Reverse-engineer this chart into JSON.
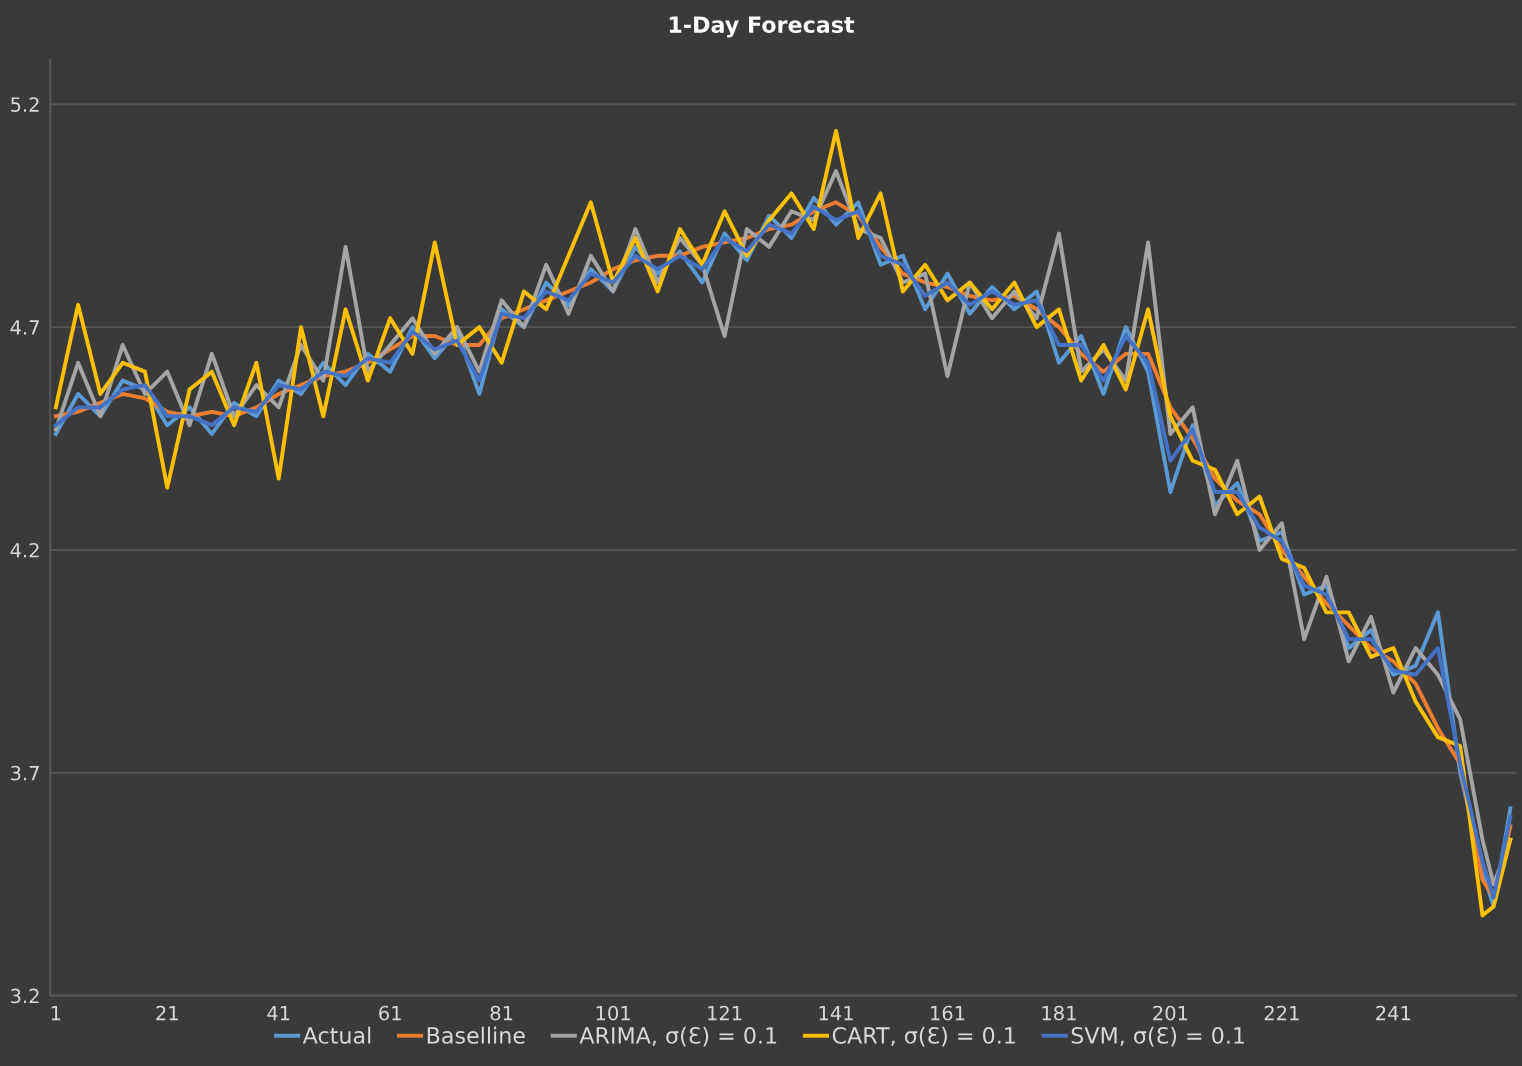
{
  "chart_data": {
    "type": "line",
    "title": "1-Day Forecast",
    "x": [
      1,
      5,
      9,
      13,
      17,
      21,
      25,
      29,
      33,
      37,
      41,
      45,
      49,
      53,
      57,
      61,
      65,
      69,
      73,
      77,
      81,
      85,
      89,
      93,
      97,
      101,
      105,
      109,
      113,
      117,
      121,
      125,
      129,
      133,
      137,
      141,
      145,
      149,
      153,
      157,
      161,
      165,
      169,
      173,
      177,
      181,
      185,
      189,
      193,
      197,
      201,
      205,
      209,
      213,
      217,
      221,
      225,
      229,
      233,
      237,
      241,
      245,
      249,
      253,
      257,
      259,
      262
    ],
    "series": [
      {
        "name": "Actual",
        "color": "#5b9bd5",
        "values": [
          4.46,
          4.55,
          4.5,
          4.58,
          4.56,
          4.48,
          4.52,
          4.46,
          4.53,
          4.5,
          4.58,
          4.55,
          4.62,
          4.57,
          4.64,
          4.6,
          4.7,
          4.63,
          4.69,
          4.55,
          4.74,
          4.7,
          4.8,
          4.75,
          4.83,
          4.78,
          4.88,
          4.82,
          4.87,
          4.8,
          4.91,
          4.85,
          4.95,
          4.9,
          4.99,
          4.93,
          4.98,
          4.84,
          4.86,
          4.74,
          4.82,
          4.73,
          4.79,
          4.74,
          4.78,
          4.62,
          4.68,
          4.55,
          4.7,
          4.6,
          4.33,
          4.48,
          4.3,
          4.35,
          4.22,
          4.24,
          4.1,
          4.12,
          3.98,
          4.02,
          3.92,
          3.94,
          4.06,
          3.7,
          3.48,
          3.4,
          3.62
        ]
      },
      {
        "name": "Baselline",
        "color": "#ed7d31",
        "values": [
          4.5,
          4.51,
          4.53,
          4.55,
          4.54,
          4.51,
          4.5,
          4.51,
          4.5,
          4.52,
          4.55,
          4.57,
          4.59,
          4.6,
          4.62,
          4.65,
          4.68,
          4.68,
          4.66,
          4.66,
          4.72,
          4.74,
          4.76,
          4.78,
          4.8,
          4.83,
          4.85,
          4.86,
          4.86,
          4.88,
          4.89,
          4.9,
          4.92,
          4.93,
          4.96,
          4.98,
          4.95,
          4.88,
          4.82,
          4.8,
          4.79,
          4.77,
          4.76,
          4.77,
          4.74,
          4.7,
          4.64,
          4.6,
          4.64,
          4.64,
          4.52,
          4.45,
          4.36,
          4.31,
          4.28,
          4.2,
          4.14,
          4.08,
          4.03,
          3.98,
          3.95,
          3.9,
          3.8,
          3.72,
          3.46,
          3.42,
          3.58
        ]
      },
      {
        "name": "ARIMA, σ(Ɛ) = 0.1",
        "color": "#a5a5a5",
        "values": [
          4.47,
          4.62,
          4.5,
          4.66,
          4.55,
          4.6,
          4.48,
          4.64,
          4.5,
          4.57,
          4.52,
          4.66,
          4.58,
          4.88,
          4.6,
          4.66,
          4.72,
          4.64,
          4.7,
          4.6,
          4.76,
          4.7,
          4.84,
          4.73,
          4.86,
          4.78,
          4.92,
          4.8,
          4.9,
          4.84,
          4.68,
          4.92,
          4.88,
          4.96,
          4.94,
          5.05,
          4.92,
          4.9,
          4.8,
          4.82,
          4.59,
          4.8,
          4.72,
          4.78,
          4.72,
          4.91,
          4.6,
          4.65,
          4.58,
          4.89,
          4.46,
          4.52,
          4.28,
          4.4,
          4.2,
          4.26,
          4.0,
          4.14,
          3.95,
          4.05,
          3.88,
          3.98,
          3.92,
          3.82,
          3.55,
          3.45,
          3.55
        ]
      },
      {
        "name": "CART, σ(Ɛ) = 0.1",
        "color": "#ffc000",
        "values": [
          4.52,
          4.75,
          4.55,
          4.62,
          4.6,
          4.34,
          4.56,
          4.6,
          4.48,
          4.62,
          4.36,
          4.7,
          4.5,
          4.74,
          4.58,
          4.72,
          4.64,
          4.89,
          4.66,
          4.7,
          4.62,
          4.78,
          4.74,
          4.86,
          4.98,
          4.8,
          4.9,
          4.78,
          4.92,
          4.84,
          4.96,
          4.86,
          4.94,
          5.0,
          4.92,
          5.14,
          4.9,
          5.0,
          4.78,
          4.84,
          4.76,
          4.8,
          4.74,
          4.8,
          4.7,
          4.74,
          4.58,
          4.66,
          4.56,
          4.74,
          4.5,
          4.4,
          4.38,
          4.28,
          4.32,
          4.18,
          4.16,
          4.06,
          4.06,
          3.96,
          3.98,
          3.86,
          3.78,
          3.76,
          3.38,
          3.4,
          3.55
        ]
      },
      {
        "name": "SVM, σ(Ɛ) = 0.1",
        "color": "#4472c4",
        "values": [
          4.48,
          4.52,
          4.52,
          4.56,
          4.57,
          4.5,
          4.5,
          4.48,
          4.52,
          4.51,
          4.57,
          4.56,
          4.6,
          4.59,
          4.63,
          4.62,
          4.69,
          4.65,
          4.67,
          4.58,
          4.73,
          4.72,
          4.78,
          4.76,
          4.82,
          4.8,
          4.86,
          4.83,
          4.86,
          4.83,
          4.9,
          4.87,
          4.93,
          4.91,
          4.97,
          4.94,
          4.96,
          4.86,
          4.84,
          4.77,
          4.8,
          4.75,
          4.78,
          4.75,
          4.76,
          4.66,
          4.66,
          4.58,
          4.68,
          4.62,
          4.4,
          4.47,
          4.33,
          4.33,
          4.25,
          4.22,
          4.12,
          4.1,
          4.0,
          4.0,
          3.93,
          3.92,
          3.98,
          3.72,
          3.5,
          3.42,
          3.6
        ]
      }
    ],
    "xlim": [
      0,
      263
    ],
    "xticks": [
      1,
      21,
      41,
      61,
      81,
      101,
      121,
      141,
      161,
      181,
      201,
      221,
      241
    ],
    "ylim": [
      3.2,
      5.3
    ],
    "yticks": [
      3.2,
      3.7,
      4.2,
      4.7,
      5.2
    ],
    "grid": "y",
    "legend": "bottom",
    "marker": "none",
    "line_style": "solid"
  }
}
